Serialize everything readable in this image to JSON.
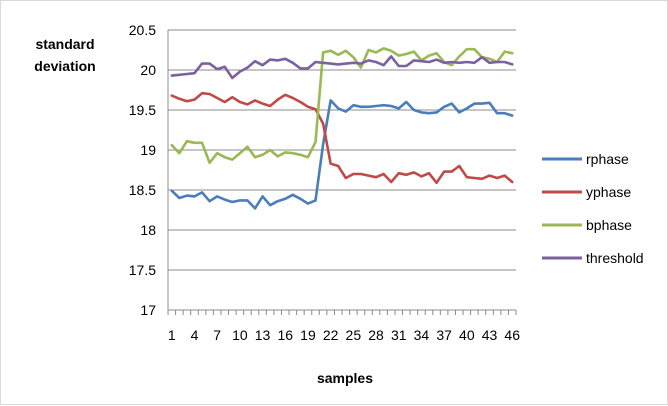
{
  "chart_data": {
    "type": "line",
    "ylabel_lines": [
      "standard",
      "deviation"
    ],
    "xlabel": "samples",
    "ylim": [
      17,
      20.5
    ],
    "yticks": [
      17,
      17.5,
      18,
      18.5,
      19,
      19.5,
      20,
      20.5
    ],
    "ytick_labels": [
      "17",
      "17.5",
      "18",
      "18.5",
      "19",
      "19.5",
      "20",
      "20.5"
    ],
    "x": [
      1,
      2,
      3,
      4,
      5,
      6,
      7,
      8,
      9,
      10,
      11,
      12,
      13,
      14,
      15,
      16,
      17,
      18,
      19,
      20,
      21,
      22,
      23,
      24,
      25,
      26,
      27,
      28,
      29,
      30,
      31,
      32,
      33,
      34,
      35,
      36,
      37,
      38,
      39,
      40,
      41,
      42,
      43,
      44,
      45,
      46
    ],
    "xtick_labels": [
      "1",
      "4",
      "7",
      "10",
      "13",
      "16",
      "19",
      "22",
      "25",
      "28",
      "31",
      "34",
      "37",
      "40",
      "43",
      "46"
    ],
    "grid": "horizontal",
    "legend_position": "right",
    "series": [
      {
        "name": "rphase",
        "color": "#4a7ebb",
        "values": [
          18.49,
          18.4,
          18.43,
          18.42,
          18.47,
          18.36,
          18.42,
          18.38,
          18.35,
          18.37,
          18.37,
          18.27,
          18.42,
          18.31,
          18.36,
          18.39,
          18.44,
          18.39,
          18.33,
          18.37,
          19.07,
          19.62,
          19.52,
          19.48,
          19.56,
          19.54,
          19.54,
          19.55,
          19.56,
          19.55,
          19.52,
          19.6,
          19.5,
          19.47,
          19.46,
          19.47,
          19.54,
          19.58,
          19.47,
          19.52,
          19.58,
          19.58,
          19.59,
          19.46,
          19.46,
          19.43
        ]
      },
      {
        "name": "yphase",
        "color": "#be4b48",
        "values": [
          19.68,
          19.64,
          19.61,
          19.63,
          19.71,
          19.7,
          19.65,
          19.6,
          19.66,
          19.6,
          19.57,
          19.62,
          19.58,
          19.55,
          19.63,
          19.69,
          19.65,
          19.6,
          19.54,
          19.51,
          19.33,
          18.83,
          18.8,
          18.65,
          18.7,
          18.7,
          18.68,
          18.66,
          18.7,
          18.6,
          18.71,
          18.69,
          18.72,
          18.67,
          18.71,
          18.59,
          18.73,
          18.73,
          18.8,
          18.66,
          18.65,
          18.64,
          18.68,
          18.65,
          18.68,
          18.6
        ]
      },
      {
        "name": "bphase",
        "color": "#98b954",
        "values": [
          19.06,
          18.96,
          19.11,
          19.09,
          19.09,
          18.84,
          18.96,
          18.91,
          18.88,
          18.96,
          19.04,
          18.91,
          18.94,
          19.0,
          18.92,
          18.97,
          18.96,
          18.94,
          18.91,
          19.1,
          20.22,
          20.24,
          20.19,
          20.24,
          20.16,
          20.03,
          20.25,
          20.22,
          20.27,
          20.24,
          20.18,
          20.2,
          20.23,
          20.12,
          20.18,
          20.21,
          20.1,
          20.06,
          20.17,
          20.26,
          20.26,
          20.16,
          20.14,
          20.1,
          20.23,
          20.21
        ]
      },
      {
        "name": "threshold",
        "color": "#7d60a0",
        "values": [
          19.93,
          19.94,
          19.95,
          19.96,
          20.08,
          20.08,
          20.01,
          20.04,
          19.9,
          19.98,
          20.03,
          20.11,
          20.06,
          20.13,
          20.12,
          20.14,
          20.09,
          20.02,
          20.02,
          20.1,
          20.09,
          20.08,
          20.07,
          20.08,
          20.09,
          20.08,
          20.12,
          20.1,
          20.06,
          20.17,
          20.05,
          20.05,
          20.12,
          20.11,
          20.1,
          20.13,
          20.09,
          20.1,
          20.09,
          20.1,
          20.09,
          20.16,
          20.09,
          20.1,
          20.1,
          20.07
        ]
      }
    ]
  }
}
